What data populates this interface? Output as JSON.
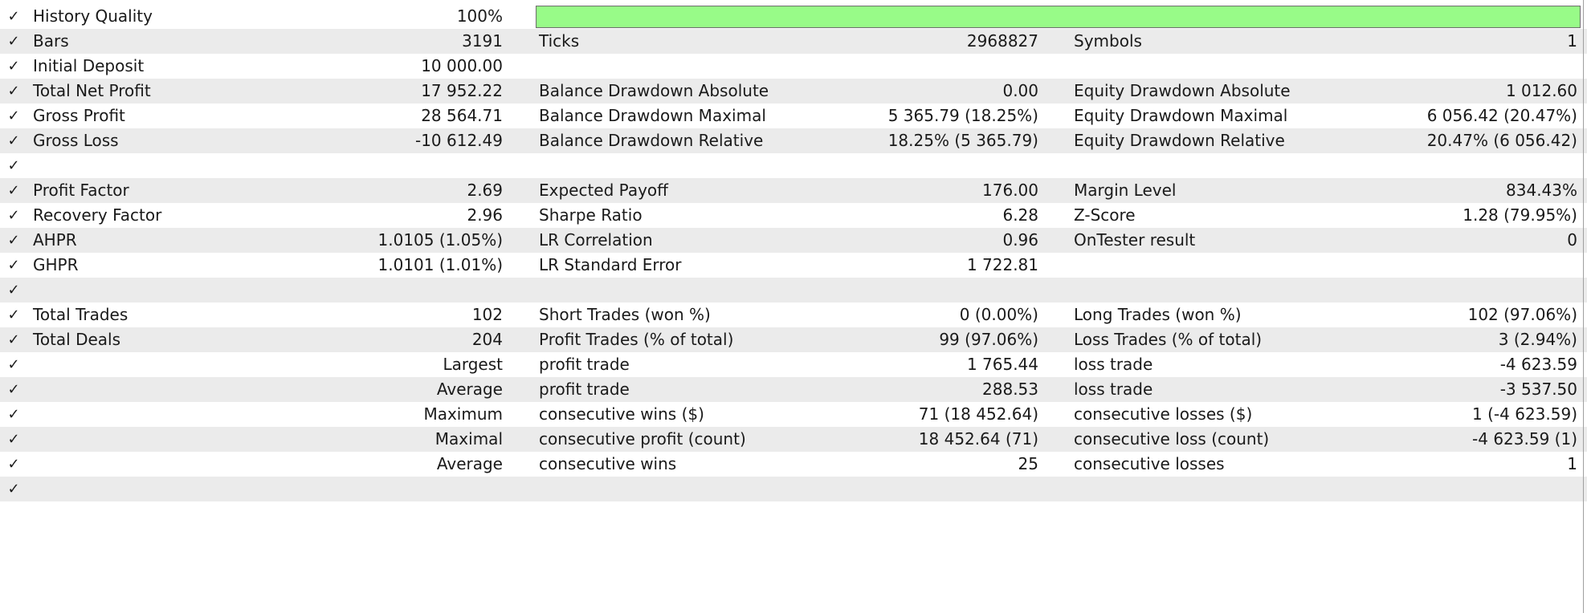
{
  "history_quality": {
    "label": "History Quality",
    "value": "100%",
    "fill_fraction": 1.0,
    "fill_color": "#98fb88"
  },
  "check_glyph": "✓",
  "rows": [
    {
      "l1": "Bars",
      "v1": "3191",
      "l2": "Ticks",
      "v2": "2968827",
      "l3": "Symbols",
      "v3": "1"
    },
    {
      "l1": "Initial Deposit",
      "v1": "10 000.00"
    },
    {
      "l1": "Total Net Profit",
      "v1": "17 952.22",
      "l2": "Balance Drawdown Absolute",
      "v2": "0.00",
      "l3": "Equity Drawdown Absolute",
      "v3": "1 012.60"
    },
    {
      "l1": "Gross Profit",
      "v1": "28 564.71",
      "l2": "Balance Drawdown Maximal",
      "v2": "5 365.79 (18.25%)",
      "l3": "Equity Drawdown Maximal",
      "v3": "6 056.42 (20.47%)"
    },
    {
      "l1": "Gross Loss",
      "v1": "-10 612.49",
      "l2": "Balance Drawdown Relative",
      "v2": "18.25% (5 365.79)",
      "l3": "Equity Drawdown Relative",
      "v3": "20.47% (6 056.42)"
    },
    {},
    {
      "l1": "Profit Factor",
      "v1": "2.69",
      "l2": "Expected Payoff",
      "v2": "176.00",
      "l3": "Margin Level",
      "v3": "834.43%"
    },
    {
      "l1": "Recovery Factor",
      "v1": "2.96",
      "l2": "Sharpe Ratio",
      "v2": "6.28",
      "l3": "Z-Score",
      "v3": "1.28 (79.95%)"
    },
    {
      "l1": "AHPR",
      "v1": "1.0105 (1.05%)",
      "l2": "LR Correlation",
      "v2": "0.96",
      "l3": "OnTester result",
      "v3": "0"
    },
    {
      "l1": "GHPR",
      "v1": "1.0101 (1.01%)",
      "l2": "LR Standard Error",
      "v2": "1 722.81"
    },
    {},
    {
      "l1": "Total Trades",
      "v1": "102",
      "l2": "Short Trades (won %)",
      "v2": "0 (0.00%)",
      "l3": "Long Trades (won %)",
      "v3": "102 (97.06%)"
    },
    {
      "l1": "Total Deals",
      "v1": "204",
      "l2": "Profit Trades (% of total)",
      "v2": "99 (97.06%)",
      "l3": "Loss Trades (% of total)",
      "v3": "3 (2.94%)"
    },
    {
      "v1": "Largest",
      "l2": "profit trade",
      "v2": "1 765.44",
      "l3": "loss trade",
      "v3": "-4 623.59"
    },
    {
      "v1": "Average",
      "l2": "profit trade",
      "v2": "288.53",
      "l3": "loss trade",
      "v3": "-3 537.50"
    },
    {
      "v1": "Maximum",
      "l2": "consecutive wins ($)",
      "v2": "71 (18 452.64)",
      "l3": "consecutive losses ($)",
      "v3": "1 (-4 623.59)"
    },
    {
      "v1": "Maximal",
      "l2": "consecutive profit (count)",
      "v2": "18 452.64 (71)",
      "l3": "consecutive loss (count)",
      "v3": "-4 623.59 (1)"
    },
    {
      "v1": "Average",
      "l2": "consecutive wins",
      "v2": "25",
      "l3": "consecutive losses",
      "v3": "1"
    },
    {}
  ]
}
